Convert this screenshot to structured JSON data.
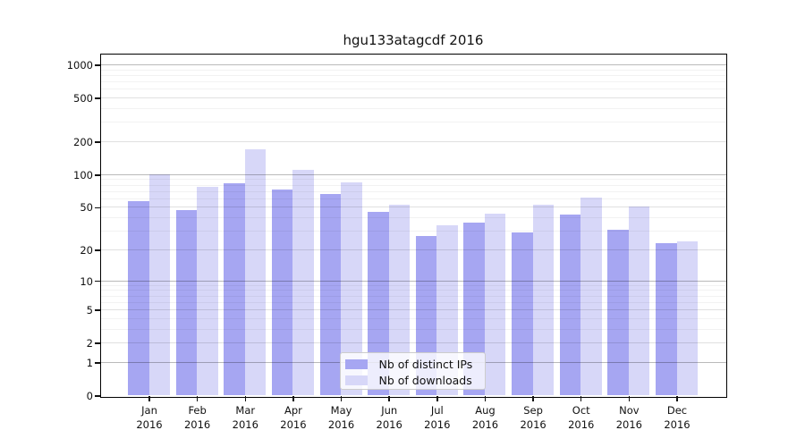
{
  "chart_data": {
    "type": "bar",
    "title": "hgu133atagcdf 2016",
    "year_label": "2016",
    "categories": [
      "Jan",
      "Feb",
      "Mar",
      "Apr",
      "May",
      "Jun",
      "Jul",
      "Aug",
      "Sep",
      "Oct",
      "Nov",
      "Dec"
    ],
    "series": [
      {
        "name": "Nb of distinct IPs",
        "color": "#a6a6f2",
        "values": [
          57,
          47,
          83,
          73,
          66,
          45,
          27,
          36,
          29,
          43,
          31,
          23
        ]
      },
      {
        "name": "Nb of downloads",
        "color": "#d7d7f8",
        "values": [
          100,
          78,
          170,
          110,
          85,
          53,
          34,
          44,
          53,
          61,
          51,
          24
        ]
      }
    ],
    "xlabel": "",
    "ylabel": "",
    "y_axis": {
      "scale": "log1p",
      "ylim": [
        0,
        1250
      ],
      "tick_labels": [
        "1000",
        "500",
        "200",
        "100",
        "50",
        "20",
        "10",
        "5",
        "2",
        "1",
        "0"
      ],
      "tick_values": [
        1000,
        500,
        200,
        100,
        50,
        20,
        10,
        5,
        2,
        1,
        0
      ],
      "grid_major_values": [
        1,
        10,
        100,
        1000
      ],
      "grid_mid_values": [
        2,
        5,
        20,
        50,
        200,
        500
      ],
      "grid_minor_values": [
        3,
        4,
        6,
        7,
        8,
        9,
        30,
        40,
        60,
        70,
        80,
        90,
        300,
        400,
        600,
        700,
        800,
        900
      ]
    },
    "legend": {
      "position": "lower-center",
      "entries": [
        "Nb of distinct IPs",
        "Nb of downloads"
      ]
    },
    "grid": true
  },
  "colors": {
    "bar_distinct_ips": "#a6a6f2",
    "bar_downloads": "#d7d7f8",
    "spine": "#000000",
    "legend_border": "#cccccc"
  }
}
